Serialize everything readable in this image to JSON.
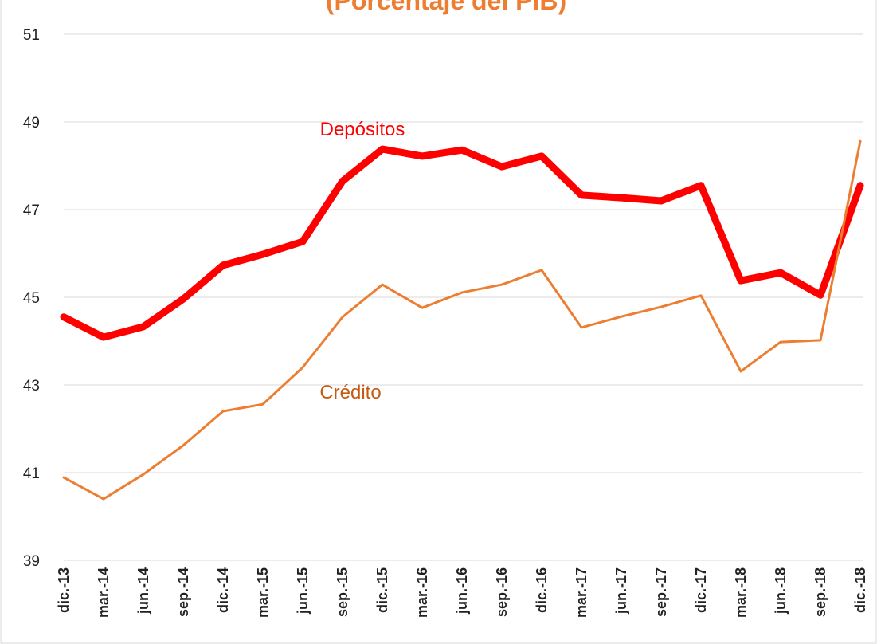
{
  "chart_data": {
    "type": "line",
    "title": "(Porcentaje del PIB)",
    "categories": [
      "dic.-13",
      "mar.-14",
      "jun.-14",
      "sep.-14",
      "dic.-14",
      "mar.-15",
      "jun.-15",
      "sep.-15",
      "dic.-15",
      "mar.-16",
      "jun.-16",
      "sep.-16",
      "dic.-16",
      "mar.-17",
      "jun.-17",
      "sep.-17",
      "dic.-17",
      "mar.-18",
      "jun.-18",
      "sep.-18",
      "dic.-18"
    ],
    "series": [
      {
        "name": "Depósitos",
        "color": "#ff0000",
        "values": [
          44.55,
          44.09,
          44.33,
          44.96,
          45.73,
          45.98,
          46.27,
          47.65,
          48.38,
          48.22,
          48.36,
          47.98,
          48.22,
          47.33,
          47.27,
          47.2,
          47.55,
          45.38,
          45.56,
          45.05,
          47.55
        ]
      },
      {
        "name": "Crédito",
        "color": "#ed7d31",
        "values": [
          40.89,
          40.4,
          40.96,
          41.62,
          42.4,
          42.56,
          43.4,
          44.55,
          45.29,
          44.76,
          45.11,
          45.29,
          45.62,
          44.31,
          44.56,
          44.78,
          45.04,
          43.31,
          43.98,
          44.02,
          48.56
        ]
      }
    ],
    "ylim": [
      39,
      51
    ],
    "yticks": [
      39,
      41,
      43,
      45,
      47,
      49,
      51
    ],
    "grid": true
  }
}
